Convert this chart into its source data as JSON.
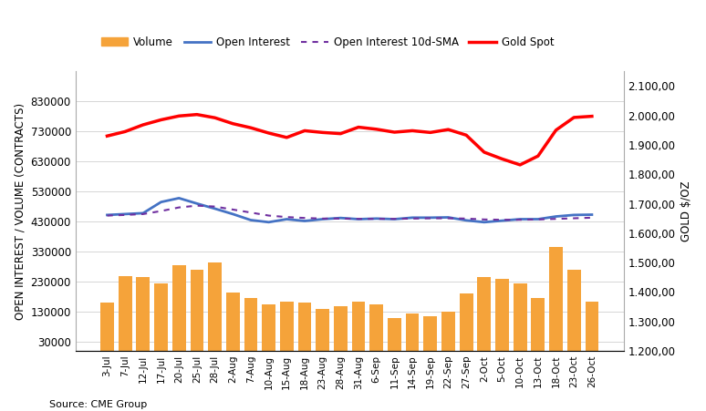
{
  "title": "",
  "xlabel": "",
  "ylabel_left": "OPEN INTEREST / VOLUME (CONTRACTS)",
  "ylabel_right": "GOLD $/OZ",
  "source": "Source: CME Group",
  "x_labels": [
    "3-Jul",
    "7-Jul",
    "12-Jul",
    "17-Jul",
    "20-Jul",
    "25-Jul",
    "28-Jul",
    "2-Aug",
    "7-Aug",
    "10-Aug",
    "15-Aug",
    "18-Aug",
    "23-Aug",
    "28-Aug",
    "31-Aug",
    "6-Sep",
    "11-Sep",
    "14-Sep",
    "19-Sep",
    "22-Sep",
    "27-Sep",
    "2-Oct",
    "5-Oct",
    "10-Oct",
    "13-Oct",
    "18-Oct",
    "23-Oct",
    "26-Oct"
  ],
  "volume": [
    160000,
    250000,
    245000,
    225000,
    285000,
    270000,
    295000,
    195000,
    175000,
    155000,
    165000,
    160000,
    140000,
    150000,
    165000,
    155000,
    110000,
    125000,
    115000,
    130000,
    190000,
    245000,
    240000,
    225000,
    175000,
    345000,
    270000,
    165000
  ],
  "open_interest": [
    452000,
    455000,
    458000,
    495000,
    508000,
    490000,
    473000,
    455000,
    435000,
    428000,
    438000,
    432000,
    438000,
    442000,
    438000,
    440000,
    438000,
    443000,
    443000,
    444000,
    434000,
    428000,
    433000,
    438000,
    438000,
    447000,
    452000,
    453000
  ],
  "sma_10d": [
    450000,
    452000,
    455000,
    465000,
    477000,
    483000,
    480000,
    470000,
    460000,
    450000,
    445000,
    442000,
    440000,
    440000,
    439000,
    439000,
    439000,
    440000,
    441000,
    441000,
    440000,
    437000,
    436000,
    436000,
    437000,
    439000,
    441000,
    443000
  ],
  "gold_spot": [
    1930,
    1945,
    1968,
    1985,
    1998,
    2003,
    1992,
    1972,
    1958,
    1940,
    1925,
    1948,
    1942,
    1938,
    1960,
    1953,
    1943,
    1948,
    1942,
    1952,
    1933,
    1875,
    1852,
    1832,
    1862,
    1950,
    1993,
    1997
  ],
  "ylim_left": [
    0,
    930000
  ],
  "ylim_right": [
    1200,
    2150
  ],
  "yticks_left": [
    30000,
    130000,
    230000,
    330000,
    430000,
    530000,
    630000,
    730000,
    830000
  ],
  "yticks_right": [
    1200,
    1300,
    1400,
    1500,
    1600,
    1700,
    1800,
    1900,
    2000,
    2100
  ],
  "bar_color": "#F5A33A",
  "open_interest_color": "#4472C4",
  "sma_color": "#7030A0",
  "gold_color": "#FF0000",
  "background_color": "#FFFFFF",
  "grid_color": "#D0D0D0"
}
